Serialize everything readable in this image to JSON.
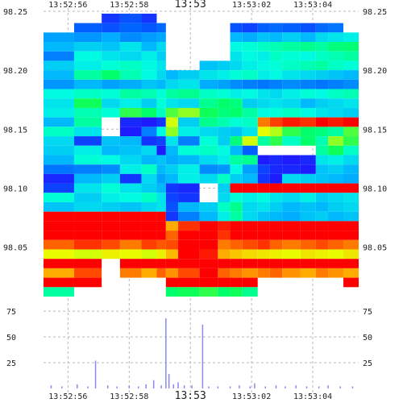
{
  "chart_data": [
    {
      "type": "heatmap",
      "title": "",
      "xlabel": "",
      "ylabel": "",
      "x_ticks": [
        "13:52:56",
        "13:52:58",
        "13:53",
        "13:53:02",
        "13:53:04"
      ],
      "y_ticks": [
        98.05,
        98.1,
        98.15,
        98.2,
        98.25
      ],
      "xlim_seconds_after_13_52_55": [
        0.2,
        10.5
      ],
      "ylim": [
        98.008,
        98.25
      ],
      "bin_edges_seconds_after_13_52_55": [
        0.2,
        1.2,
        2.1,
        2.7,
        3.4,
        3.9,
        4.2,
        4.6,
        5.3,
        5.9,
        6.3,
        6.7,
        7.2,
        7.6,
        8.0,
        8.6,
        9.1,
        9.5,
        10.0,
        10.5
      ],
      "grid": true,
      "color_scale": [
        "#2a00ff",
        "#0060ff",
        "#00b0ff",
        "#00ffe0",
        "#00ff60",
        "#e8ff00",
        "#ffb000",
        "#ff0000"
      ],
      "color_scale_range": [
        0.0,
        1.0
      ],
      "rows": [
        {
          "price": 98.244,
          "values": [
            null,
            null,
            0.08,
            0.12,
            0.08,
            null,
            null,
            null,
            null,
            null,
            null,
            null,
            null,
            null,
            null,
            null,
            null,
            null,
            null
          ]
        },
        {
          "price": 98.236,
          "values": [
            null,
            0.14,
            0.12,
            0.15,
            0.13,
            0.16,
            null,
            null,
            null,
            null,
            0.12,
            0.1,
            0.14,
            0.16,
            0.14,
            0.12,
            0.16,
            0.18,
            null
          ]
        },
        {
          "price": 98.228,
          "values": [
            0.26,
            0.24,
            0.28,
            0.22,
            0.25,
            0.27,
            null,
            null,
            null,
            null,
            0.3,
            0.28,
            0.32,
            0.3,
            0.34,
            0.3,
            0.36,
            0.38,
            0.4
          ]
        },
        {
          "price": 98.22,
          "values": [
            0.3,
            0.34,
            0.32,
            0.38,
            0.3,
            0.36,
            null,
            null,
            null,
            null,
            0.42,
            0.44,
            0.46,
            0.48,
            0.5,
            0.52,
            0.5,
            0.54,
            0.55
          ]
        },
        {
          "price": 98.212,
          "values": [
            0.2,
            0.42,
            0.38,
            0.36,
            0.4,
            0.34,
            null,
            null,
            null,
            null,
            0.38,
            0.42,
            0.4,
            0.46,
            0.44,
            0.42,
            0.46,
            0.48,
            0.5
          ]
        },
        {
          "price": 98.204,
          "values": [
            0.34,
            0.4,
            0.44,
            0.46,
            0.42,
            0.38,
            null,
            null,
            0.32,
            0.34,
            0.36,
            0.4,
            0.42,
            0.44,
            0.46,
            0.48,
            0.5,
            0.46,
            0.44
          ]
        },
        {
          "price": 98.196,
          "values": [
            0.3,
            0.5,
            0.56,
            0.48,
            0.42,
            0.36,
            0.3,
            0.34,
            0.38,
            0.4,
            0.44,
            0.46,
            0.4,
            0.42,
            0.38,
            0.36,
            0.34,
            0.32,
            0.3
          ]
        },
        {
          "price": 98.188,
          "values": [
            0.24,
            0.3,
            0.26,
            0.28,
            0.32,
            0.3,
            0.36,
            0.38,
            0.28,
            0.26,
            0.22,
            0.2,
            0.18,
            0.2,
            0.22,
            0.2,
            0.18,
            0.2,
            0.22
          ]
        },
        {
          "price": 98.18,
          "values": [
            0.42,
            0.46,
            0.44,
            0.5,
            0.48,
            0.44,
            0.5,
            0.52,
            0.46,
            0.44,
            0.4,
            0.42,
            0.38,
            0.36,
            0.4,
            0.44,
            0.42,
            0.46,
            0.48
          ]
        },
        {
          "price": 98.172,
          "values": [
            0.38,
            0.58,
            0.36,
            0.4,
            0.34,
            0.44,
            0.38,
            0.36,
            0.52,
            0.56,
            0.54,
            0.34,
            0.36,
            0.38,
            0.36,
            0.3,
            0.34,
            0.36,
            0.38
          ]
        },
        {
          "price": 98.164,
          "values": [
            0.4,
            0.48,
            0.44,
            0.6,
            0.56,
            0.46,
            0.62,
            0.66,
            0.58,
            0.54,
            0.56,
            0.5,
            0.42,
            0.44,
            0.46,
            0.42,
            0.38,
            0.36,
            0.34
          ]
        },
        {
          "price": 98.156,
          "values": [
            0.3,
            0.5,
            null,
            0.06,
            0.04,
            0.08,
            0.7,
            0.34,
            0.52,
            0.48,
            0.44,
            0.46,
            0.9,
            0.95,
            0.98,
            0.96,
            1.0,
            0.98,
            1.0
          ]
        },
        {
          "price": 98.148,
          "values": [
            0.46,
            0.38,
            null,
            0.04,
            0.2,
            0.42,
            0.66,
            0.4,
            0.36,
            0.34,
            0.32,
            0.38,
            0.72,
            0.68,
            0.6,
            0.56,
            0.54,
            0.5,
            0.62
          ]
        },
        {
          "price": 98.14,
          "values": [
            0.36,
            0.1,
            0.32,
            0.3,
            0.08,
            0.1,
            0.38,
            0.2,
            0.44,
            0.34,
            0.54,
            0.7,
            0.5,
            0.6,
            0.46,
            0.56,
            0.48,
            0.66,
            0.6
          ]
        },
        {
          "price": 98.132,
          "values": [
            0.34,
            0.4,
            0.3,
            0.32,
            0.36,
            0.04,
            0.3,
            0.44,
            0.46,
            0.42,
            0.3,
            0.14,
            null,
            null,
            null,
            null,
            0.5,
            0.58,
            0.46
          ]
        },
        {
          "price": 98.124,
          "values": [
            0.3,
            0.44,
            0.42,
            0.36,
            0.3,
            0.32,
            0.28,
            0.3,
            0.36,
            0.4,
            0.5,
            0.52,
            0.04,
            0.06,
            0.04,
            0.06,
            0.38,
            0.4,
            0.36
          ]
        },
        {
          "price": 98.116,
          "values": [
            0.18,
            0.2,
            0.22,
            0.4,
            0.46,
            0.3,
            0.34,
            0.4,
            0.22,
            0.24,
            0.42,
            0.26,
            0.1,
            0.06,
            0.06,
            0.04,
            0.32,
            0.34,
            0.3
          ]
        },
        {
          "price": 98.108,
          "values": [
            0.06,
            0.3,
            0.34,
            0.08,
            0.36,
            0.26,
            0.3,
            0.4,
            0.36,
            0.46,
            0.34,
            0.3,
            0.08,
            0.04,
            0.36,
            0.34,
            0.32,
            0.3,
            0.28
          ]
        },
        {
          "price": 98.1,
          "values": [
            0.1,
            0.38,
            0.44,
            0.38,
            0.34,
            0.3,
            0.08,
            0.06,
            null,
            0.34,
            1.0,
            1.0,
            1.0,
            1.0,
            1.0,
            1.0,
            1.0,
            1.0,
            1.0
          ]
        },
        {
          "price": 98.092,
          "values": [
            0.44,
            0.34,
            0.4,
            0.42,
            0.46,
            0.38,
            0.1,
            0.08,
            null,
            0.36,
            0.44,
            0.4,
            0.42,
            0.38,
            0.36,
            0.4,
            0.34,
            0.36,
            0.38
          ]
        },
        {
          "price": 98.084,
          "values": [
            0.32,
            0.36,
            0.34,
            0.32,
            0.36,
            0.38,
            0.12,
            0.3,
            0.34,
            0.46,
            0.52,
            0.36,
            0.38,
            0.34,
            0.3,
            0.32,
            0.3,
            0.34,
            0.36
          ]
        },
        {
          "price": 98.076,
          "values": [
            1.0,
            1.0,
            1.0,
            1.0,
            1.0,
            1.0,
            0.08,
            0.2,
            0.3,
            0.4,
            0.5,
            0.36,
            0.32,
            0.3,
            0.28,
            0.32,
            0.34,
            0.3,
            0.32
          ]
        },
        {
          "price": 98.068,
          "values": [
            1.0,
            1.0,
            1.0,
            1.0,
            1.0,
            1.0,
            0.86,
            0.96,
            1.0,
            0.98,
            1.0,
            1.0,
            1.0,
            1.0,
            1.0,
            1.0,
            1.0,
            1.0,
            1.0
          ]
        },
        {
          "price": 98.06,
          "values": [
            1.0,
            1.0,
            1.0,
            1.0,
            1.0,
            1.0,
            0.92,
            1.0,
            1.0,
            0.96,
            1.0,
            1.0,
            1.0,
            1.0,
            1.0,
            1.0,
            1.0,
            1.0,
            1.0
          ]
        },
        {
          "price": 98.052,
          "values": [
            0.92,
            0.96,
            0.94,
            0.9,
            0.95,
            0.93,
            0.94,
            1.0,
            1.0,
            0.9,
            0.92,
            0.94,
            0.96,
            0.92,
            0.9,
            0.92,
            0.94,
            0.92,
            0.9
          ]
        },
        {
          "price": 98.044,
          "values": [
            0.72,
            0.7,
            0.74,
            0.72,
            0.7,
            0.74,
            0.84,
            1.0,
            0.98,
            0.86,
            0.82,
            0.78,
            0.76,
            0.74,
            0.72,
            0.76,
            0.74,
            0.72,
            0.76
          ]
        },
        {
          "price": 98.036,
          "values": [
            1.0,
            1.0,
            null,
            1.0,
            1.0,
            1.0,
            1.0,
            1.0,
            1.0,
            1.0,
            1.0,
            1.0,
            1.0,
            1.0,
            1.0,
            1.0,
            1.0,
            1.0,
            1.0
          ]
        },
        {
          "price": 98.028,
          "values": [
            0.86,
            0.94,
            null,
            0.9,
            0.86,
            0.92,
            0.88,
            0.94,
            1.0,
            0.92,
            0.9,
            0.88,
            0.9,
            0.92,
            0.88,
            0.86,
            0.9,
            0.88,
            0.86
          ]
        },
        {
          "price": 98.02,
          "values": [
            1.0,
            1.0,
            null,
            null,
            null,
            null,
            1.0,
            1.0,
            1.0,
            1.0,
            1.0,
            1.0,
            null,
            null,
            null,
            null,
            null,
            null,
            1.0
          ]
        },
        {
          "price": 98.012,
          "values": [
            0.5,
            null,
            null,
            null,
            null,
            null,
            0.56,
            0.58,
            0.6,
            0.56,
            0.58,
            0.52,
            null,
            null,
            null,
            null,
            null,
            null,
            null
          ]
        }
      ]
    },
    {
      "type": "bar",
      "title": "",
      "xlabel": "",
      "ylabel": "",
      "y_ticks": [
        25,
        50,
        75
      ],
      "ylim": [
        0,
        86
      ],
      "xlim_seconds_after_13_52_55": [
        0.2,
        10.5
      ],
      "grid": true,
      "series": [
        {
          "color": "#8a8aee",
          "points": [
            {
              "x": 0.45,
              "y": 3
            },
            {
              "x": 0.8,
              "y": 2
            },
            {
              "x": 1.3,
              "y": 4
            },
            {
              "x": 1.65,
              "y": 2
            },
            {
              "x": 1.9,
              "y": 27
            },
            {
              "x": 2.3,
              "y": 3
            },
            {
              "x": 2.6,
              "y": 2
            },
            {
              "x": 3.0,
              "y": 3
            },
            {
              "x": 3.3,
              "y": 2
            },
            {
              "x": 3.55,
              "y": 4
            },
            {
              "x": 3.8,
              "y": 8
            },
            {
              "x": 4.05,
              "y": 3
            },
            {
              "x": 4.2,
              "y": 68
            },
            {
              "x": 4.3,
              "y": 14
            },
            {
              "x": 4.45,
              "y": 4
            },
            {
              "x": 4.6,
              "y": 6
            },
            {
              "x": 4.8,
              "y": 3
            },
            {
              "x": 5.05,
              "y": 3
            },
            {
              "x": 5.4,
              "y": 62
            },
            {
              "x": 5.6,
              "y": 2
            },
            {
              "x": 5.9,
              "y": 2
            },
            {
              "x": 6.3,
              "y": 2
            },
            {
              "x": 6.6,
              "y": 3
            },
            {
              "x": 6.95,
              "y": 2
            },
            {
              "x": 7.1,
              "y": 5
            },
            {
              "x": 7.45,
              "y": 2
            },
            {
              "x": 7.8,
              "y": 3
            },
            {
              "x": 8.1,
              "y": 2
            },
            {
              "x": 8.45,
              "y": 3
            },
            {
              "x": 8.8,
              "y": 2
            },
            {
              "x": 9.2,
              "y": 2
            },
            {
              "x": 9.5,
              "y": 3
            },
            {
              "x": 9.9,
              "y": 2
            },
            {
              "x": 10.3,
              "y": 2
            }
          ]
        }
      ]
    }
  ]
}
